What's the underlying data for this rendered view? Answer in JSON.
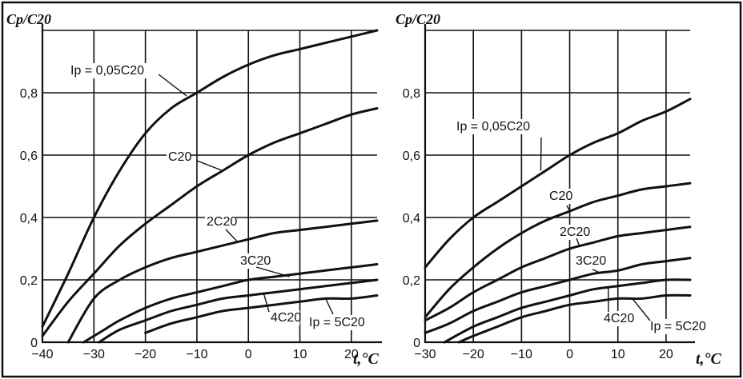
{
  "chart_data": [
    {
      "type": "line",
      "ylabel": "Cp/C20",
      "xlabel": "t,°C",
      "xlim": [
        -40,
        25
      ],
      "ylim": [
        0,
        1.0
      ],
      "x_ticks": [
        -40,
        -30,
        -20,
        -10,
        0,
        10,
        20
      ],
      "x_tick_labels": [
        "−40",
        "−30",
        "−20",
        "−10",
        "0",
        "10",
        "20"
      ],
      "y_ticks": [
        0,
        0.2,
        0.4,
        0.6,
        0.8
      ],
      "y_tick_labels": [
        "0",
        "0,2",
        "0,4",
        "0,6",
        "0,8"
      ],
      "grid": true,
      "series": [
        {
          "name": "Ip = 0,05C20",
          "x": [
            -40,
            -35,
            -30,
            -25,
            -20,
            -15,
            -10,
            -5,
            0,
            5,
            10,
            15,
            20,
            25
          ],
          "y": [
            0.05,
            0.22,
            0.4,
            0.55,
            0.67,
            0.75,
            0.8,
            0.85,
            0.89,
            0.92,
            0.94,
            0.96,
            0.98,
            1.0
          ]
        },
        {
          "name": "C20",
          "x": [
            -40,
            -35,
            -30,
            -25,
            -20,
            -15,
            -10,
            -5,
            0,
            5,
            10,
            15,
            20,
            25
          ],
          "y": [
            0.02,
            0.13,
            0.22,
            0.31,
            0.38,
            0.44,
            0.5,
            0.55,
            0.6,
            0.64,
            0.67,
            0.7,
            0.73,
            0.75
          ]
        },
        {
          "name": "2C20",
          "x": [
            -35,
            -30,
            -25,
            -20,
            -15,
            -10,
            -5,
            0,
            5,
            10,
            15,
            20,
            25
          ],
          "y": [
            0.0,
            0.14,
            0.2,
            0.24,
            0.27,
            0.29,
            0.31,
            0.33,
            0.35,
            0.36,
            0.37,
            0.38,
            0.39
          ]
        },
        {
          "name": "3C20",
          "x": [
            -32,
            -28,
            -25,
            -20,
            -15,
            -10,
            -5,
            0,
            5,
            10,
            15,
            20,
            25
          ],
          "y": [
            0.0,
            0.04,
            0.07,
            0.11,
            0.14,
            0.16,
            0.18,
            0.2,
            0.21,
            0.22,
            0.23,
            0.24,
            0.25
          ]
        },
        {
          "name": "4C20",
          "x": [
            -29,
            -25,
            -20,
            -15,
            -10,
            -5,
            0,
            5,
            10,
            15,
            20,
            25
          ],
          "y": [
            0.0,
            0.04,
            0.07,
            0.1,
            0.12,
            0.14,
            0.15,
            0.16,
            0.17,
            0.18,
            0.19,
            0.2
          ]
        },
        {
          "name": "Ip = 5C20",
          "x": [
            -20,
            -15,
            -10,
            -5,
            0,
            5,
            10,
            15,
            20,
            25
          ],
          "y": [
            0.03,
            0.06,
            0.08,
            0.1,
            0.11,
            0.12,
            0.13,
            0.14,
            0.14,
            0.15
          ]
        }
      ]
    },
    {
      "type": "line",
      "ylabel": "Cp/C20",
      "xlabel": "t,°C",
      "xlim": [
        -30,
        25
      ],
      "ylim": [
        0,
        1.0
      ],
      "x_ticks": [
        -30,
        -20,
        -10,
        0,
        10,
        20
      ],
      "x_tick_labels": [
        "−30",
        "−20",
        "−10",
        "0",
        "10",
        "20"
      ],
      "y_ticks": [
        0,
        0.2,
        0.4,
        0.6,
        0.8
      ],
      "y_tick_labels": [
        "0",
        "0,2",
        "0,4",
        "0,6",
        "0,8"
      ],
      "grid": true,
      "series": [
        {
          "name": "Ip = 0,05C20",
          "x": [
            -30,
            -25,
            -20,
            -15,
            -10,
            -5,
            0,
            5,
            10,
            15,
            20,
            25
          ],
          "y": [
            0.24,
            0.33,
            0.4,
            0.45,
            0.5,
            0.55,
            0.6,
            0.64,
            0.67,
            0.71,
            0.74,
            0.78
          ]
        },
        {
          "name": "C20",
          "x": [
            -30,
            -25,
            -20,
            -15,
            -10,
            -5,
            0,
            5,
            10,
            15,
            20,
            25
          ],
          "y": [
            0.08,
            0.17,
            0.24,
            0.3,
            0.35,
            0.39,
            0.42,
            0.45,
            0.47,
            0.49,
            0.5,
            0.51
          ]
        },
        {
          "name": "2C20",
          "x": [
            -30,
            -25,
            -20,
            -15,
            -10,
            -5,
            0,
            5,
            10,
            15,
            20,
            25
          ],
          "y": [
            0.07,
            0.11,
            0.16,
            0.2,
            0.24,
            0.27,
            0.3,
            0.32,
            0.34,
            0.35,
            0.36,
            0.37
          ]
        },
        {
          "name": "3C20",
          "x": [
            -30,
            -25,
            -20,
            -15,
            -10,
            -5,
            0,
            5,
            10,
            15,
            20,
            25
          ],
          "y": [
            0.03,
            0.06,
            0.1,
            0.13,
            0.16,
            0.18,
            0.2,
            0.22,
            0.23,
            0.25,
            0.26,
            0.27
          ]
        },
        {
          "name": "4C20",
          "x": [
            -26,
            -20,
            -15,
            -10,
            -5,
            0,
            5,
            10,
            15,
            20,
            25
          ],
          "y": [
            0.0,
            0.05,
            0.08,
            0.11,
            0.13,
            0.15,
            0.17,
            0.18,
            0.19,
            0.2,
            0.2
          ]
        },
        {
          "name": "Ip = 5C20",
          "x": [
            -23,
            -20,
            -15,
            -10,
            -5,
            0,
            5,
            10,
            15,
            20,
            25
          ],
          "y": [
            0.0,
            0.02,
            0.05,
            0.08,
            0.1,
            0.12,
            0.13,
            0.14,
            0.14,
            0.15,
            0.15
          ]
        }
      ]
    }
  ]
}
